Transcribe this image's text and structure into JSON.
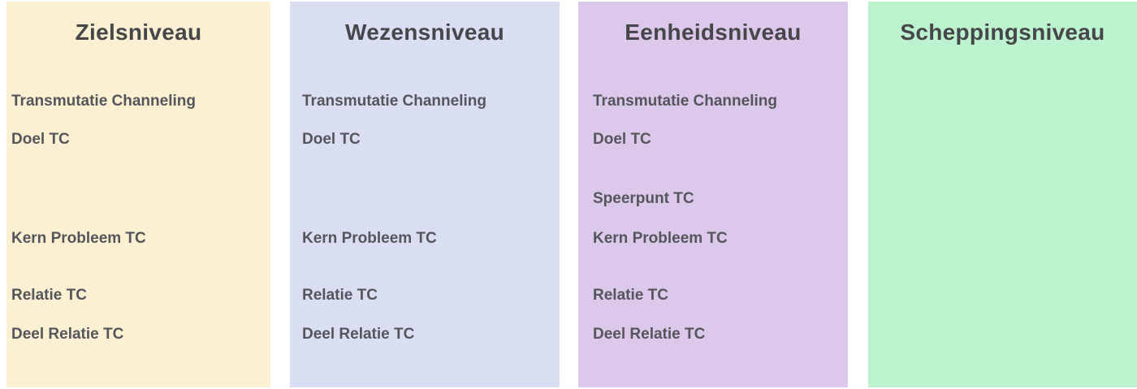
{
  "board": {
    "background": "#ffffff",
    "text_colors": {
      "title": "#46474b",
      "item": "#55565c"
    },
    "columns": [
      {
        "title": "Zielsniveau",
        "bg": "#fbf0d2",
        "items": [
          "Transmutatie Channeling",
          "Doel TC",
          "Kern Probleem TC",
          "Relatie TC",
          "Deel Relatie TC"
        ]
      },
      {
        "title": "Wezensniveau",
        "bg": "#dadef3",
        "items": [
          "Transmutatie Channeling",
          "Doel TC",
          "Kern Probleem TC",
          "Relatie TC",
          "Deel Relatie TC"
        ]
      },
      {
        "title": "Eenheidsniveau",
        "bg": "#dcc8ea",
        "items": [
          "Transmutatie Channeling",
          "Doel TC",
          "Speerpunt TC",
          "Kern Probleem TC",
          "Relatie TC",
          "Deel Relatie TC"
        ]
      },
      {
        "title": "Scheppingsniveau",
        "bg": "#bdf2ce",
        "items": []
      }
    ]
  }
}
